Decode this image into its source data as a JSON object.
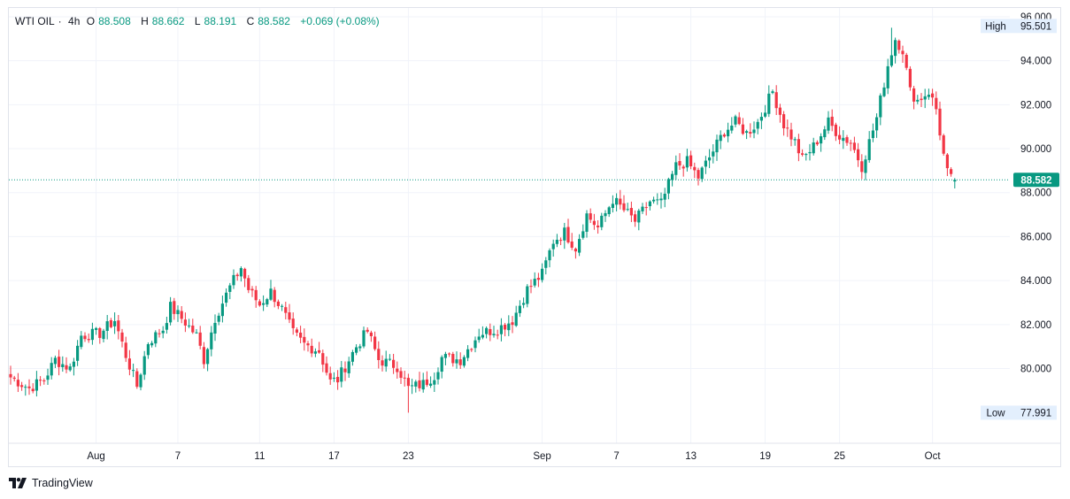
{
  "symbol": "WTI OIL",
  "interval": "4h",
  "ohlc": {
    "o_label": "O",
    "o": "88.508",
    "h_label": "H",
    "h": "88.662",
    "l_label": "L",
    "l": "88.191",
    "c_label": "C",
    "c": "88.582",
    "change": "+0.069 (+0.08%)"
  },
  "price_tag": "88.582",
  "high_marker": {
    "label": "High",
    "value": "95.501"
  },
  "low_marker": {
    "label": "Low",
    "value": "77.991"
  },
  "brand": "TradingView",
  "colors": {
    "up": "#089981",
    "down": "#f23645",
    "grid": "#f0f3fa",
    "text": "#131722"
  },
  "chart_data": {
    "type": "candlestick",
    "title": "WTI OIL, 4h",
    "ylim": [
      76.6,
      96.4
    ],
    "y_ticks": [
      "80.000",
      "82.000",
      "84.000",
      "86.000",
      "88.000",
      "90.000",
      "92.000",
      "94.000",
      "96.000"
    ],
    "x_ticks": [
      {
        "label": "Aug",
        "bar": 23
      },
      {
        "label": "7",
        "bar": 45
      },
      {
        "label": "11",
        "bar": 67
      },
      {
        "label": "17",
        "bar": 87
      },
      {
        "label": "23",
        "bar": 107
      },
      {
        "label": "Sep",
        "bar": 143
      },
      {
        "label": "7",
        "bar": 163
      },
      {
        "label": "13",
        "bar": 183
      },
      {
        "label": "19",
        "bar": 203
      },
      {
        "label": "25",
        "bar": 223
      },
      {
        "label": "Oct",
        "bar": 248
      }
    ],
    "total_bars": 255,
    "current_price": 88.582,
    "high": 95.501,
    "low": 77.991,
    "waypoints": [
      [
        0,
        79.6
      ],
      [
        5,
        79.1
      ],
      [
        9,
        79.5
      ],
      [
        12,
        80.4
      ],
      [
        16,
        80.0
      ],
      [
        19,
        81.5
      ],
      [
        24,
        81.6
      ],
      [
        28,
        82.2
      ],
      [
        31,
        80.6
      ],
      [
        34,
        79.2
      ],
      [
        37,
        81.2
      ],
      [
        41,
        81.8
      ],
      [
        43,
        82.8
      ],
      [
        47,
        82.1
      ],
      [
        50,
        81.5
      ],
      [
        52,
        80.4
      ],
      [
        55,
        82.3
      ],
      [
        59,
        83.7
      ],
      [
        62,
        84.6
      ],
      [
        64,
        83.6
      ],
      [
        67,
        82.9
      ],
      [
        70,
        83.5
      ],
      [
        73,
        82.7
      ],
      [
        76,
        81.6
      ],
      [
        79,
        81.1
      ],
      [
        83,
        80.8
      ],
      [
        86,
        79.4
      ],
      [
        88,
        79.5
      ],
      [
        93,
        81.0
      ],
      [
        96,
        81.7
      ],
      [
        99,
        80.4
      ],
      [
        104,
        80.1
      ],
      [
        107,
        79.1
      ],
      [
        111,
        79.3
      ],
      [
        114,
        79.7
      ],
      [
        116,
        80.5
      ],
      [
        121,
        80.4
      ],
      [
        126,
        81.6
      ],
      [
        131,
        81.8
      ],
      [
        135,
        82.2
      ],
      [
        139,
        83.6
      ],
      [
        143,
        84.3
      ],
      [
        146,
        85.8
      ],
      [
        149,
        86.2
      ],
      [
        152,
        85.5
      ],
      [
        155,
        87.0
      ],
      [
        158,
        86.4
      ],
      [
        162,
        87.7
      ],
      [
        165,
        87.2
      ],
      [
        168,
        86.7
      ],
      [
        172,
        87.6
      ],
      [
        175,
        87.5
      ],
      [
        179,
        89.2
      ],
      [
        182,
        89.4
      ],
      [
        185,
        88.7
      ],
      [
        188,
        89.6
      ],
      [
        192,
        90.8
      ],
      [
        195,
        91.2
      ],
      [
        198,
        90.7
      ],
      [
        201,
        91.2
      ],
      [
        205,
        92.6
      ],
      [
        208,
        91.1
      ],
      [
        211,
        90.3
      ],
      [
        213,
        89.5
      ],
      [
        216,
        90.1
      ],
      [
        220,
        91.2
      ],
      [
        223,
        90.6
      ],
      [
        226,
        90.3
      ],
      [
        229,
        89.2
      ],
      [
        233,
        91.4
      ],
      [
        236,
        93.8
      ],
      [
        238,
        95.0
      ],
      [
        240,
        94.5
      ],
      [
        242,
        92.6
      ],
      [
        244,
        92.2
      ],
      [
        247,
        92.6
      ],
      [
        249,
        91.8
      ],
      [
        251,
        89.7
      ],
      [
        252,
        88.9
      ],
      [
        253,
        88.6
      ],
      [
        254,
        88.58
      ]
    ]
  }
}
